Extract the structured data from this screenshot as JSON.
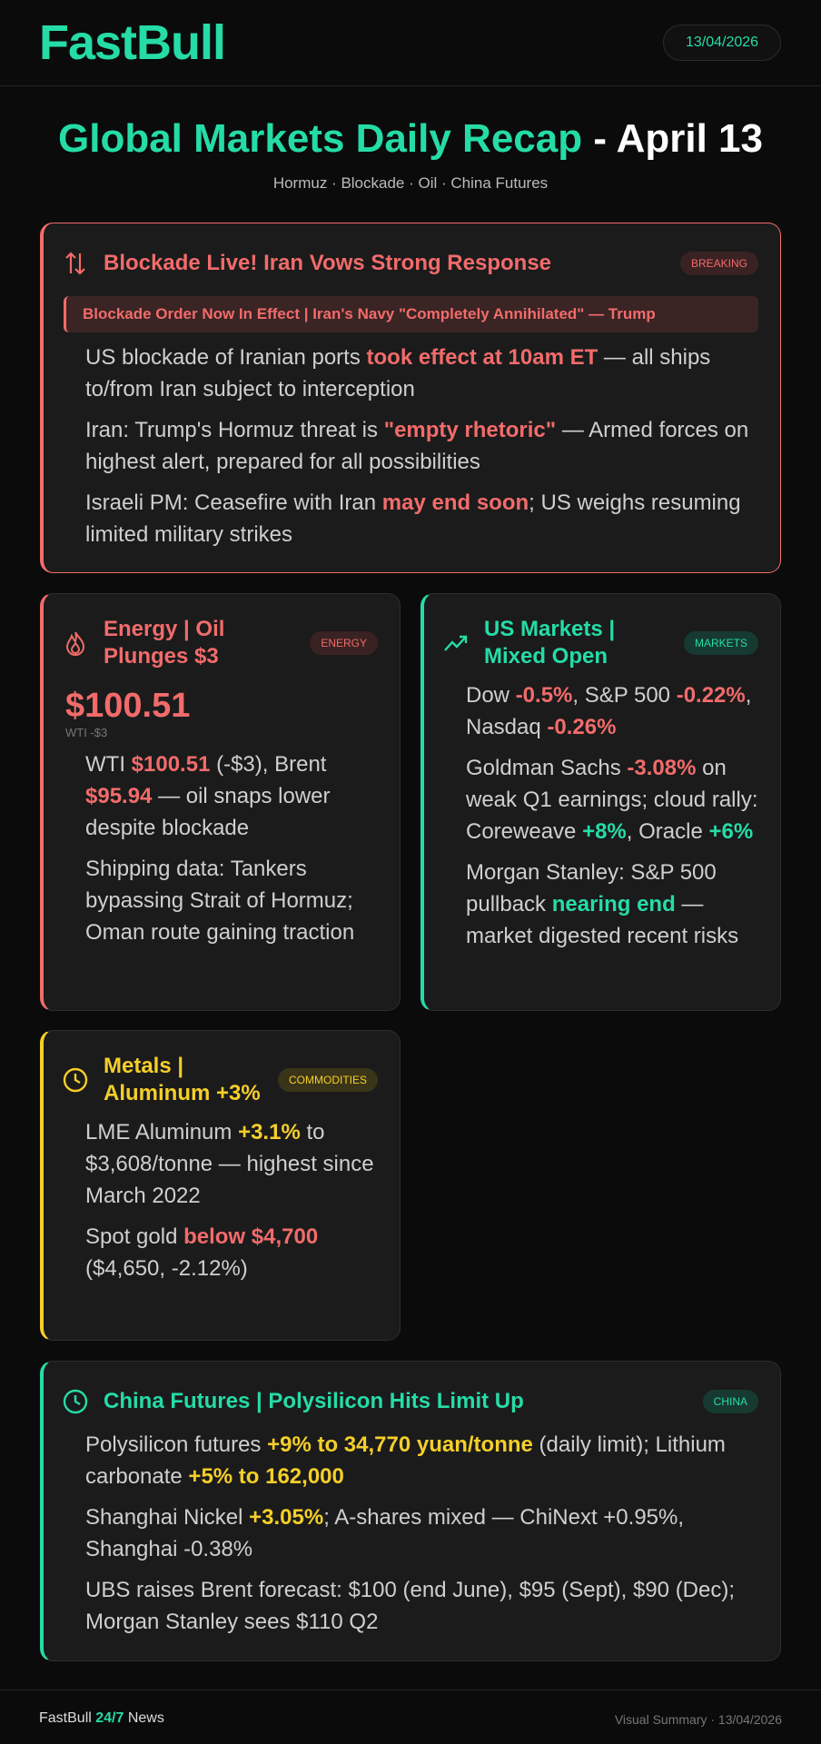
{
  "header": {
    "logo": "FastBull",
    "date": "13/04/2026"
  },
  "title": {
    "main": "Global Markets Daily Recap",
    "rest": "- April 13",
    "subtitle": "Hormuz · Blockade · Oil · China Futures"
  },
  "cards": [
    {
      "title": "Blockade Live! Iran Vows Strong Response",
      "tag": "BREAKING",
      "accent": "red",
      "banner": "Blockade Order Now In Effect | Iran's Navy \"Completely Annihilated\" — Trump",
      "items": [
        [
          {
            "t": "US blockade of Iranian ports "
          },
          {
            "t": "took effect at 10am ET",
            "hl": "red"
          },
          {
            "t": " — all ships to/from Iran subject to interception"
          }
        ],
        [
          {
            "t": "Iran: Trump's Hormuz threat is "
          },
          {
            "t": "\"empty rhetoric\"",
            "hl": "red"
          },
          {
            "t": " — Armed forces on highest alert, prepared for all possibilities"
          }
        ],
        [
          {
            "t": "Israeli PM: Ceasefire with Iran "
          },
          {
            "t": "may end soon",
            "hl": "red"
          },
          {
            "t": "; US weighs resuming limited military strikes"
          }
        ]
      ]
    },
    {
      "title": "Energy | Oil Plunges $3",
      "tag": "ENERGY",
      "accent": "red",
      "price": "$100.51",
      "price_note": "WTI -$3",
      "items": [
        [
          {
            "t": "WTI "
          },
          {
            "t": "$100.51",
            "hl": "red"
          },
          {
            "t": " (-$3), Brent "
          },
          {
            "t": "$95.94",
            "hl": "red"
          },
          {
            "t": " — oil snaps lower despite blockade"
          }
        ],
        [
          {
            "t": "Shipping data: Tankers bypassing Strait of Hormuz; Oman route gaining traction"
          }
        ]
      ]
    },
    {
      "title": "US Markets | Mixed Open",
      "tag": "MARKETS",
      "accent": "green",
      "items": [
        [
          {
            "t": "Dow "
          },
          {
            "t": "-0.5%",
            "hl": "red"
          },
          {
            "t": ", S&P 500 "
          },
          {
            "t": "-0.22%",
            "hl": "red"
          },
          {
            "t": ", Nasdaq "
          },
          {
            "t": "-0.26%",
            "hl": "red"
          }
        ],
        [
          {
            "t": "Goldman Sachs "
          },
          {
            "t": "-3.08%",
            "hl": "red"
          },
          {
            "t": " on weak Q1 earnings; cloud rally: Coreweave "
          },
          {
            "t": "+8%",
            "hl": "green"
          },
          {
            "t": ", Oracle "
          },
          {
            "t": "+6%",
            "hl": "green"
          }
        ],
        [
          {
            "t": "Morgan Stanley: S&P 500 pullback "
          },
          {
            "t": "nearing end",
            "hl": "green"
          },
          {
            "t": " — market digested recent risks"
          }
        ]
      ]
    },
    {
      "title": "Metals | Aluminum +3%",
      "tag": "COMMODITIES",
      "accent": "yellow",
      "items": [
        [
          {
            "t": "LME Aluminum "
          },
          {
            "t": "+3.1%",
            "hl": "yellow"
          },
          {
            "t": " to $3,608/tonne — highest since March 2022"
          }
        ],
        [
          {
            "t": "Spot gold "
          },
          {
            "t": "below $4,700",
            "hl": "red"
          },
          {
            "t": " ($4,650, -2.12%)"
          }
        ]
      ]
    },
    {
      "title": "China Futures | Polysilicon Hits Limit Up",
      "tag": "CHINA",
      "accent": "green",
      "items": [
        [
          {
            "t": "Polysilicon futures "
          },
          {
            "t": "+9% to 34,770 yuan/tonne",
            "hl": "yellow"
          },
          {
            "t": " (daily limit); Lithium carbonate "
          },
          {
            "t": "+5% to 162,000",
            "hl": "yellow"
          }
        ],
        [
          {
            "t": "Shanghai Nickel "
          },
          {
            "t": "+3.05%",
            "hl": "yellow"
          },
          {
            "t": "; A-shares mixed — ChiNext +0.95%, Shanghai -0.38%"
          }
        ],
        [
          {
            "t": "UBS raises Brent forecast: $100 (end June), $95 (Sept), $90 (Dec); Morgan Stanley sees $110 Q2"
          }
        ]
      ]
    }
  ],
  "footer": {
    "brand": "FastBull",
    "brand_highlight": "24/7",
    "brand_rest": "News",
    "right": "Visual Summary · 13/04/2026"
  }
}
